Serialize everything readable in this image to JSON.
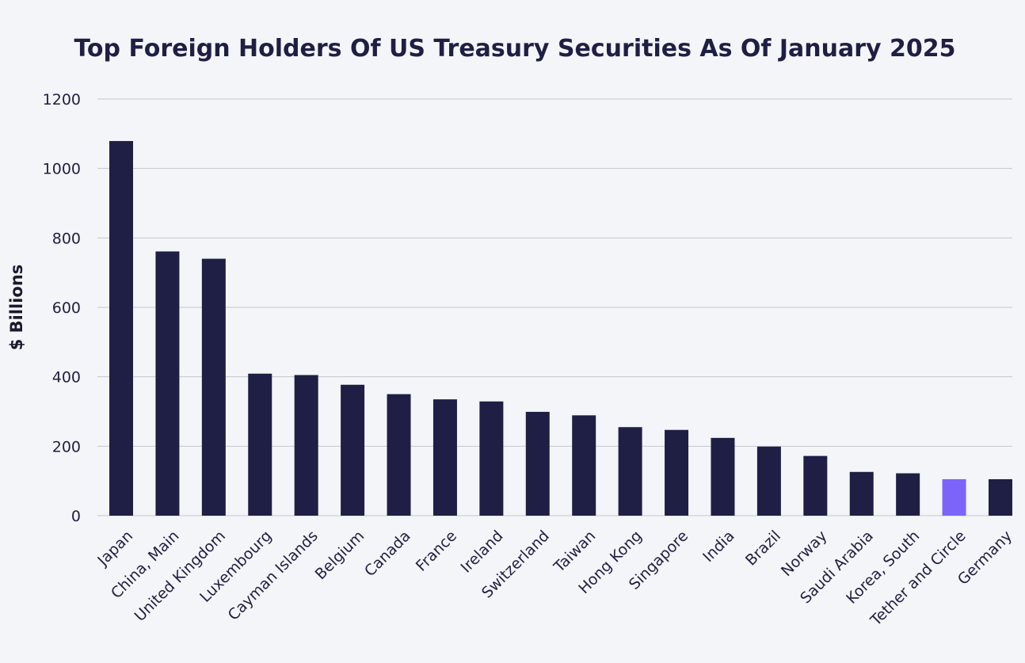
{
  "chart_data": {
    "type": "bar",
    "title": "Top Foreign Holders Of US Treasury Securities As Of January 2025",
    "xlabel": "",
    "ylabel": "$ Billions",
    "ylim": [
      0,
      1200
    ],
    "yticks": [
      0,
      200,
      400,
      600,
      800,
      1000,
      1200
    ],
    "grid": true,
    "categories": [
      "Japan",
      "China, Main",
      "United Kingdom",
      "Luxembourg",
      "Cayman Islands",
      "Belgium",
      "Canada",
      "France",
      "Ireland",
      "Switzerland",
      "Taiwan",
      "Hong Kong",
      "Singapore",
      "India",
      "Brazil",
      "Norway",
      "Saudi Arabia",
      "Korea, South",
      "Tether and Circle",
      "Germany"
    ],
    "values": [
      1079,
      761,
      740,
      409,
      405,
      377,
      350,
      335,
      329,
      299,
      289,
      255,
      247,
      224,
      199,
      172,
      126,
      122,
      105,
      105
    ],
    "colors": {
      "default": "#1f1f45",
      "highlight": "#7c64f8"
    },
    "highlight_index": 18
  }
}
